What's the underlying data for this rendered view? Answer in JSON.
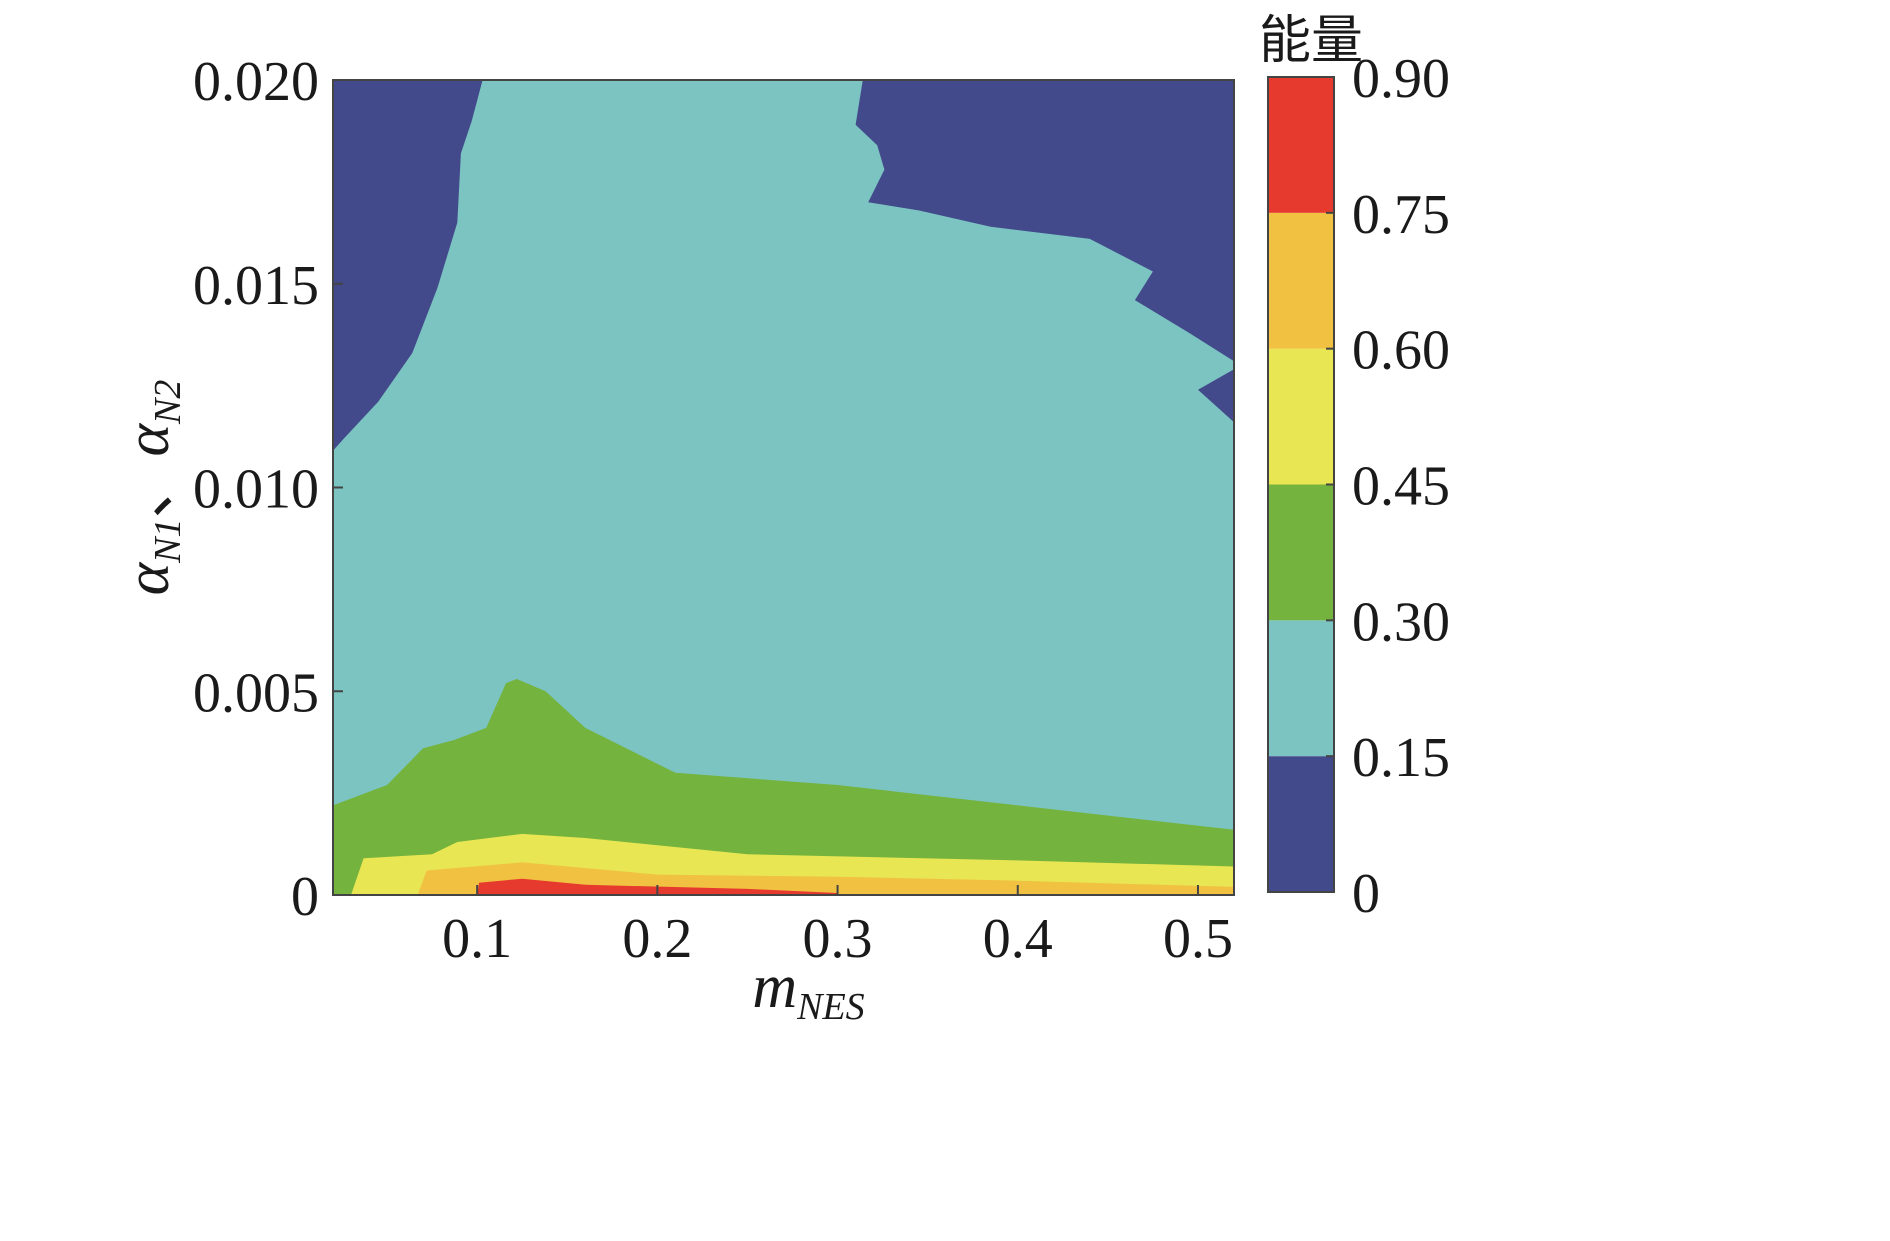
{
  "chart_data": {
    "type": "contourf",
    "xlabel": "m",
    "xlabel_sub": "NES",
    "ylabel": {
      "part1": "α",
      "part1_sub": "N1",
      "sep": "、",
      "part2": "α",
      "part2_sub": "N2"
    },
    "xlim": [
      0.02,
      0.52
    ],
    "ylim": [
      0,
      0.02
    ],
    "x_ticks": [
      0.1,
      0.2,
      0.3,
      0.4,
      0.5
    ],
    "x_tick_labels": [
      "0.1",
      "0.2",
      "0.3",
      "0.4",
      "0.5"
    ],
    "y_ticks": [
      0,
      0.005,
      0.01,
      0.015,
      0.02
    ],
    "y_tick_labels": [
      "0",
      "0.005",
      "0.010",
      "0.015",
      "0.020"
    ],
    "colorbar": {
      "title": "能量",
      "levels": [
        0,
        0.15,
        0.3,
        0.45,
        0.6,
        0.75,
        0.9
      ],
      "tick_labels": [
        "0",
        "0.15",
        "0.30",
        "0.45",
        "0.60",
        "0.75",
        "0.90"
      ],
      "colors": [
        "#434a8b",
        "#7cc4c2",
        "#74b33d",
        "#e8e653",
        "#f1c141",
        "#e63a2e"
      ]
    },
    "regions": [
      {
        "name": "level-0-0.15-left",
        "level": 0,
        "points": [
          [
            0.02,
            0.02
          ],
          [
            0.103,
            0.02
          ],
          [
            0.097,
            0.019
          ],
          [
            0.091,
            0.0182
          ],
          [
            0.089,
            0.0165
          ],
          [
            0.078,
            0.0149
          ],
          [
            0.064,
            0.0133
          ],
          [
            0.045,
            0.0121
          ],
          [
            0.026,
            0.0112
          ],
          [
            0.02,
            0.0109
          ]
        ]
      },
      {
        "name": "level-0-0.15-right",
        "level": 0,
        "points": [
          [
            0.314,
            0.02
          ],
          [
            0.52,
            0.02
          ],
          [
            0.52,
            0.0116
          ],
          [
            0.5,
            0.0124
          ],
          [
            0.52,
            0.0129
          ],
          [
            0.52,
            0.0131
          ],
          [
            0.495,
            0.0138
          ],
          [
            0.465,
            0.0146
          ],
          [
            0.475,
            0.0153
          ],
          [
            0.44,
            0.0161
          ],
          [
            0.385,
            0.0164
          ],
          [
            0.345,
            0.0168
          ],
          [
            0.317,
            0.017
          ],
          [
            0.326,
            0.0178
          ],
          [
            0.322,
            0.0184
          ],
          [
            0.31,
            0.0189
          ]
        ]
      },
      {
        "name": "level-0.3-0.45",
        "level": 2,
        "points": [
          [
            0.02,
            0
          ],
          [
            0.02,
            0.0022
          ],
          [
            0.05,
            0.0027
          ],
          [
            0.07,
            0.0036
          ],
          [
            0.087,
            0.0038
          ],
          [
            0.105,
            0.0041
          ],
          [
            0.116,
            0.0052
          ],
          [
            0.122,
            0.0053
          ],
          [
            0.138,
            0.005
          ],
          [
            0.16,
            0.0041
          ],
          [
            0.21,
            0.003
          ],
          [
            0.3,
            0.0027
          ],
          [
            0.4,
            0.0022
          ],
          [
            0.46,
            0.0019
          ],
          [
            0.52,
            0.0016
          ],
          [
            0.52,
            0
          ]
        ]
      },
      {
        "name": "level-0.45-0.6",
        "level": 3,
        "points": [
          [
            0.03,
            0
          ],
          [
            0.037,
            0.0009
          ],
          [
            0.075,
            0.001
          ],
          [
            0.089,
            0.0013
          ],
          [
            0.125,
            0.0015
          ],
          [
            0.16,
            0.0014
          ],
          [
            0.25,
            0.001
          ],
          [
            0.4,
            0.00085
          ],
          [
            0.52,
            0.0007
          ],
          [
            0.52,
            0
          ]
        ]
      },
      {
        "name": "level-0.6-0.75",
        "level": 4,
        "points": [
          [
            0.067,
            0
          ],
          [
            0.072,
            0.0006
          ],
          [
            0.125,
            0.0008
          ],
          [
            0.2,
            0.0005
          ],
          [
            0.3,
            0.00045
          ],
          [
            0.4,
            0.00035
          ],
          [
            0.52,
            0.0002
          ],
          [
            0.52,
            0
          ]
        ]
      },
      {
        "name": "level-0.75-0.9",
        "level": 5,
        "points": [
          [
            0.1,
            0
          ],
          [
            0.101,
            0.0003
          ],
          [
            0.125,
            0.0004
          ],
          [
            0.16,
            0.00025
          ],
          [
            0.25,
            0.00015
          ],
          [
            0.3,
            5e-05
          ],
          [
            0.3,
            0
          ]
        ]
      }
    ]
  }
}
